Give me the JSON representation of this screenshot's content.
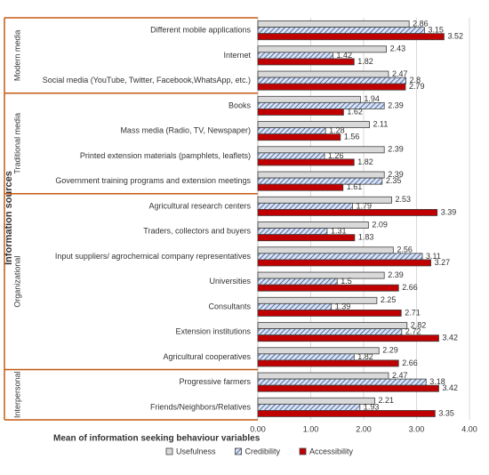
{
  "chart_data": {
    "type": "hbar",
    "y_axis_title": "Information sources",
    "x_axis_title": "Mean of information seeking behaviour variables",
    "groups": [
      {
        "name": "Modern media",
        "categories": [
          "Different mobile applications",
          "Internet",
          "Social media (YouTube, Twitter, Facebook,WhatsApp, etc.)"
        ]
      },
      {
        "name": "Traditional media",
        "categories": [
          "Books",
          "Mass media (Radio, TV, Newspaper)",
          "Printed extension materials (pamphlets, leaflets)",
          "Government training programs and extension meetings"
        ]
      },
      {
        "name": "Organizational",
        "categories": [
          "Agricultural research centers",
          "Traders, collectors and buyers",
          "Input suppliers/ agrochemical company representatives",
          "Universities",
          "Consultants",
          "Extension institutions",
          "Agricultural cooperatives"
        ]
      },
      {
        "name": "Interpersonal",
        "categories": [
          "Progressive farmers",
          "Friends/Neighbors/Relatives"
        ]
      }
    ],
    "series": [
      {
        "name": "Usefulness",
        "color": "#d9d9d9",
        "values": [
          2.86,
          2.43,
          2.47,
          1.94,
          2.11,
          2.39,
          2.39,
          2.53,
          2.09,
          2.56,
          2.39,
          2.25,
          2.82,
          2.29,
          2.47,
          2.21
        ]
      },
      {
        "name": "Credibility",
        "color": "#dae3f3",
        "hatch": true,
        "values": [
          3.15,
          1.42,
          2.8,
          2.39,
          1.28,
          1.26,
          2.35,
          1.79,
          1.31,
          3.11,
          1.5,
          1.39,
          2.72,
          1.82,
          3.18,
          1.93
        ]
      },
      {
        "name": "Accessibility",
        "color": "#c00000",
        "values": [
          3.52,
          1.82,
          2.79,
          1.62,
          1.56,
          1.82,
          1.61,
          3.39,
          1.83,
          3.27,
          2.66,
          2.71,
          3.42,
          2.66,
          3.42,
          3.35
        ]
      }
    ],
    "xlim": [
      0,
      4
    ],
    "xticks": [
      {
        "value": 0,
        "label": "0.00"
      },
      {
        "value": 1,
        "label": "1.00"
      },
      {
        "value": 2,
        "label": "2.00"
      },
      {
        "value": 3,
        "label": "3.00"
      },
      {
        "value": 4,
        "label": "4.00"
      }
    ],
    "grid": true
  }
}
